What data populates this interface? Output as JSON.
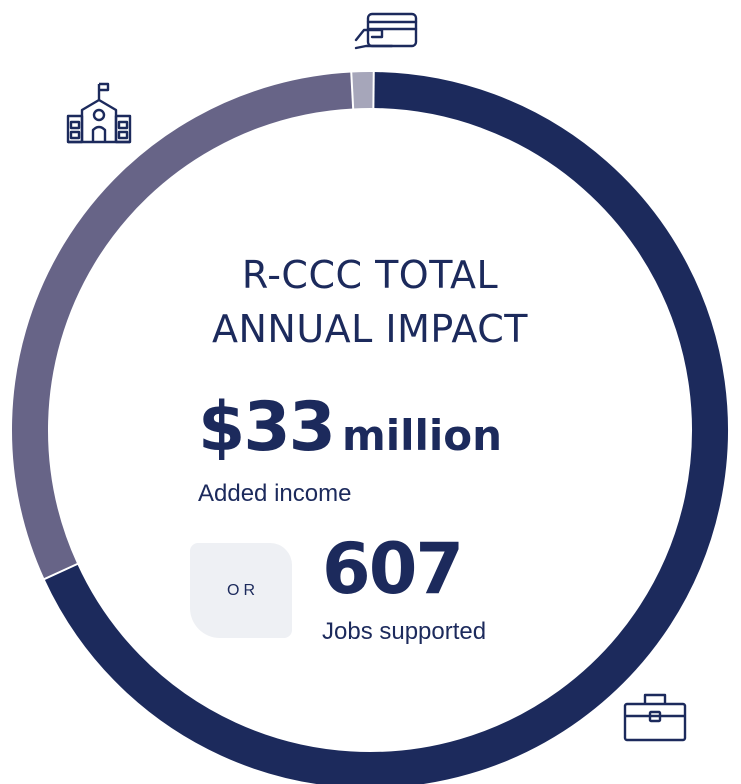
{
  "chart_data": {
    "type": "pie",
    "title_lines": [
      "R-CCC TOTAL",
      "ANNUAL IMPACT"
    ],
    "slices": [
      {
        "value": 1.0,
        "color": "#a6a6ba"
      },
      {
        "value": 68.0,
        "color": "#1c2a5c"
      },
      {
        "value": 31.0,
        "color": "#676487"
      }
    ]
  },
  "headline": {
    "amount": "$33",
    "unit": "million",
    "caption": "Added income"
  },
  "divider_word": "OR",
  "jobs": {
    "amount": "607",
    "caption": "Jobs supported"
  },
  "icons": [
    "credit-card-icon",
    "school-building-icon",
    "briefcase-icon"
  ],
  "colors": {
    "navy": "#1c2a5c",
    "slate": "#676487",
    "light": "#a6a6ba",
    "or_box_bg": "#eef0f4"
  }
}
